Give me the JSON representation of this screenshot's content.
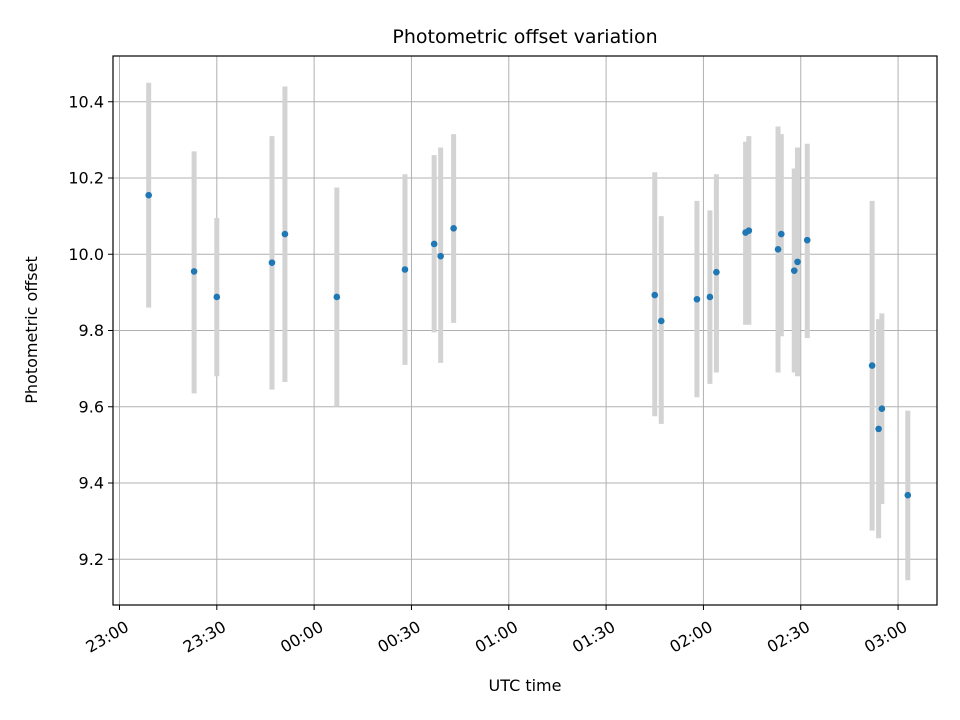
{
  "chart_data": {
    "type": "scatter",
    "title": "Photometric offset variation",
    "xlabel": "UTC time",
    "ylabel": "Photometric offset",
    "x_axis_type": "time",
    "xlim": [
      "22:58",
      "03:12"
    ],
    "ylim": [
      9.08,
      10.52
    ],
    "x_ticks": [
      "23:00",
      "23:30",
      "00:00",
      "00:30",
      "01:00",
      "01:30",
      "02:00",
      "02:30",
      "03:00"
    ],
    "y_ticks": [
      9.2,
      9.4,
      9.6,
      9.8,
      10.0,
      10.2,
      10.4
    ],
    "y_tick_labels": [
      "9.2",
      "9.4",
      "9.6",
      "9.8",
      "10.0",
      "10.2",
      "10.4"
    ],
    "grid": true,
    "marker_color": "#1f77b4",
    "errorbar_color": "#d3d3d3",
    "series": [
      {
        "points": [
          {
            "t": "23:09",
            "y": 10.155,
            "lo": 9.86,
            "hi": 10.45
          },
          {
            "t": "23:23",
            "y": 9.955,
            "lo": 9.635,
            "hi": 10.27
          },
          {
            "t": "23:30",
            "y": 9.888,
            "lo": 9.68,
            "hi": 10.095
          },
          {
            "t": "23:47",
            "y": 9.978,
            "lo": 9.645,
            "hi": 10.31
          },
          {
            "t": "23:51",
            "y": 10.053,
            "lo": 9.665,
            "hi": 10.44
          },
          {
            "t": "00:07",
            "y": 9.888,
            "lo": 9.6,
            "hi": 10.175
          },
          {
            "t": "00:28",
            "y": 9.96,
            "lo": 9.71,
            "hi": 10.21
          },
          {
            "t": "00:37",
            "y": 10.027,
            "lo": 9.795,
            "hi": 10.26
          },
          {
            "t": "00:39",
            "y": 9.995,
            "lo": 9.715,
            "hi": 10.28
          },
          {
            "t": "00:43",
            "y": 10.068,
            "lo": 9.82,
            "hi": 10.315
          },
          {
            "t": "01:45",
            "y": 9.893,
            "lo": 9.575,
            "hi": 10.215
          },
          {
            "t": "01:47",
            "y": 9.825,
            "lo": 9.555,
            "hi": 10.1
          },
          {
            "t": "01:58",
            "y": 9.882,
            "lo": 9.625,
            "hi": 10.14
          },
          {
            "t": "02:02",
            "y": 9.888,
            "lo": 9.66,
            "hi": 10.115
          },
          {
            "t": "02:04",
            "y": 9.953,
            "lo": 9.69,
            "hi": 10.21
          },
          {
            "t": "02:13",
            "y": 10.057,
            "lo": 9.815,
            "hi": 10.295
          },
          {
            "t": "02:14",
            "y": 10.062,
            "lo": 9.815,
            "hi": 10.31
          },
          {
            "t": "02:23",
            "y": 10.013,
            "lo": 9.69,
            "hi": 10.335
          },
          {
            "t": "02:24",
            "y": 10.053,
            "lo": 9.785,
            "hi": 10.315
          },
          {
            "t": "02:28",
            "y": 9.957,
            "lo": 9.69,
            "hi": 10.225
          },
          {
            "t": "02:29",
            "y": 9.98,
            "lo": 9.68,
            "hi": 10.28
          },
          {
            "t": "02:32",
            "y": 10.037,
            "lo": 9.78,
            "hi": 10.29
          },
          {
            "t": "02:52",
            "y": 9.708,
            "lo": 9.275,
            "hi": 10.14
          },
          {
            "t": "02:54",
            "y": 9.542,
            "lo": 9.255,
            "hi": 9.83
          },
          {
            "t": "02:55",
            "y": 9.595,
            "lo": 9.345,
            "hi": 9.845
          },
          {
            "t": "03:03",
            "y": 9.368,
            "lo": 9.145,
            "hi": 9.59
          }
        ]
      }
    ]
  }
}
